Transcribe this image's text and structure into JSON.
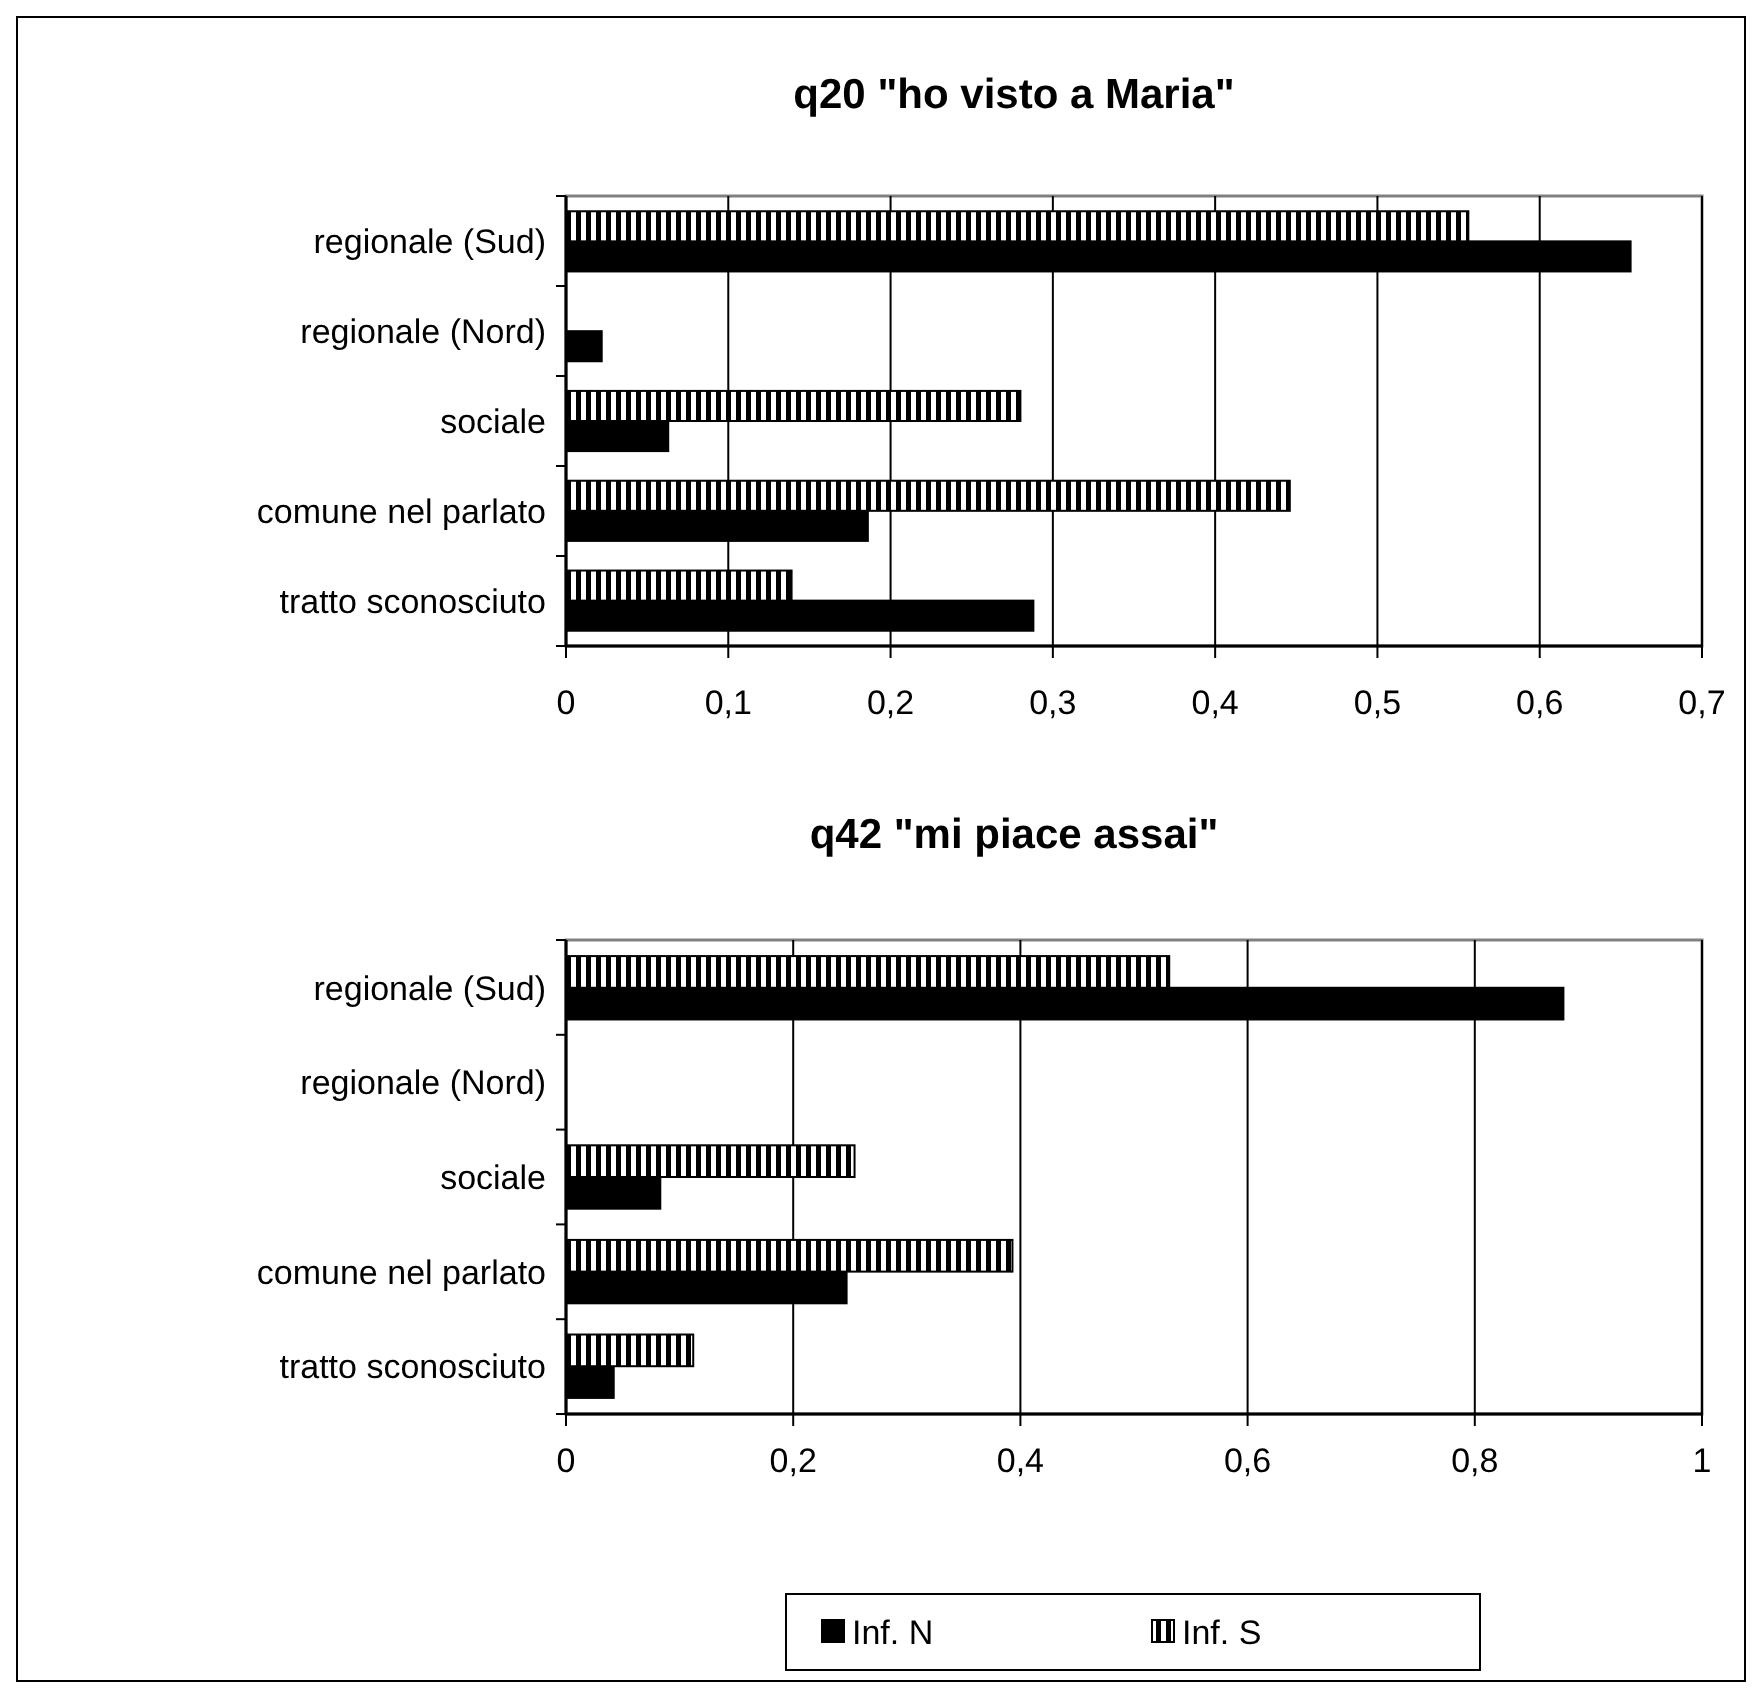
{
  "chart_data": [
    {
      "type": "bar",
      "orientation": "horizontal",
      "title": "q20 \"ho visto a Maria\"",
      "categories": [
        "regionale (Sud)",
        "regionale (Nord)",
        "sociale",
        "comune nel parlato",
        "tratto sconosciuto"
      ],
      "series": [
        {
          "color": "#000000",
          "values": [
            0.656,
            0.022,
            0.063,
            0.186,
            0.288
          ]
        },
        {
          "color": "#000000",
          "values": [
            0.556,
            null,
            0.28,
            0.446,
            0.139
          ]
        }
      ],
      "xlim": [
        0,
        0.7
      ],
      "xticks": [
        {
          "value": 0,
          "label": "0"
        },
        {
          "value": 0.1,
          "label": "0,1"
        },
        {
          "value": 0.2,
          "label": "0,2"
        },
        {
          "value": 0.3,
          "label": "0,3"
        },
        {
          "value": 0.4,
          "label": "0,4"
        },
        {
          "value": 0.5,
          "label": "0,5"
        },
        {
          "value": 0.6,
          "label": "0,6"
        },
        {
          "value": 0.7,
          "label": "0,7"
        }
      ],
      "grid": "x",
      "legend": false
    },
    {
      "type": "bar",
      "orientation": "horizontal",
      "title": "q42 \"mi piace assai\"",
      "categories": [
        "regionale (Sud)",
        "regionale (Nord)",
        "sociale",
        "comune nel parlato",
        "tratto sconosciuto"
      ],
      "series": [
        {
          "name": "Inf. N",
          "color": "#000000",
          "values": [
            0.878,
            0,
            0.083,
            0.247,
            0.042
          ]
        },
        {
          "name": "Inf. S",
          "color": "#000000",
          "values": [
            0.531,
            0,
            0.254,
            0.393,
            0.112
          ]
        }
      ],
      "xlim": [
        0,
        1
      ],
      "xticks": [
        {
          "value": 0,
          "label": "0"
        },
        {
          "value": 0.2,
          "label": "0,2"
        },
        {
          "value": 0.4,
          "label": "0,4"
        },
        {
          "value": 0.6,
          "label": "0,6"
        },
        {
          "value": 0.8,
          "label": "0,8"
        },
        1
      ],
      "grid": "x",
      "legend": "bottom"
    }
  ]
}
